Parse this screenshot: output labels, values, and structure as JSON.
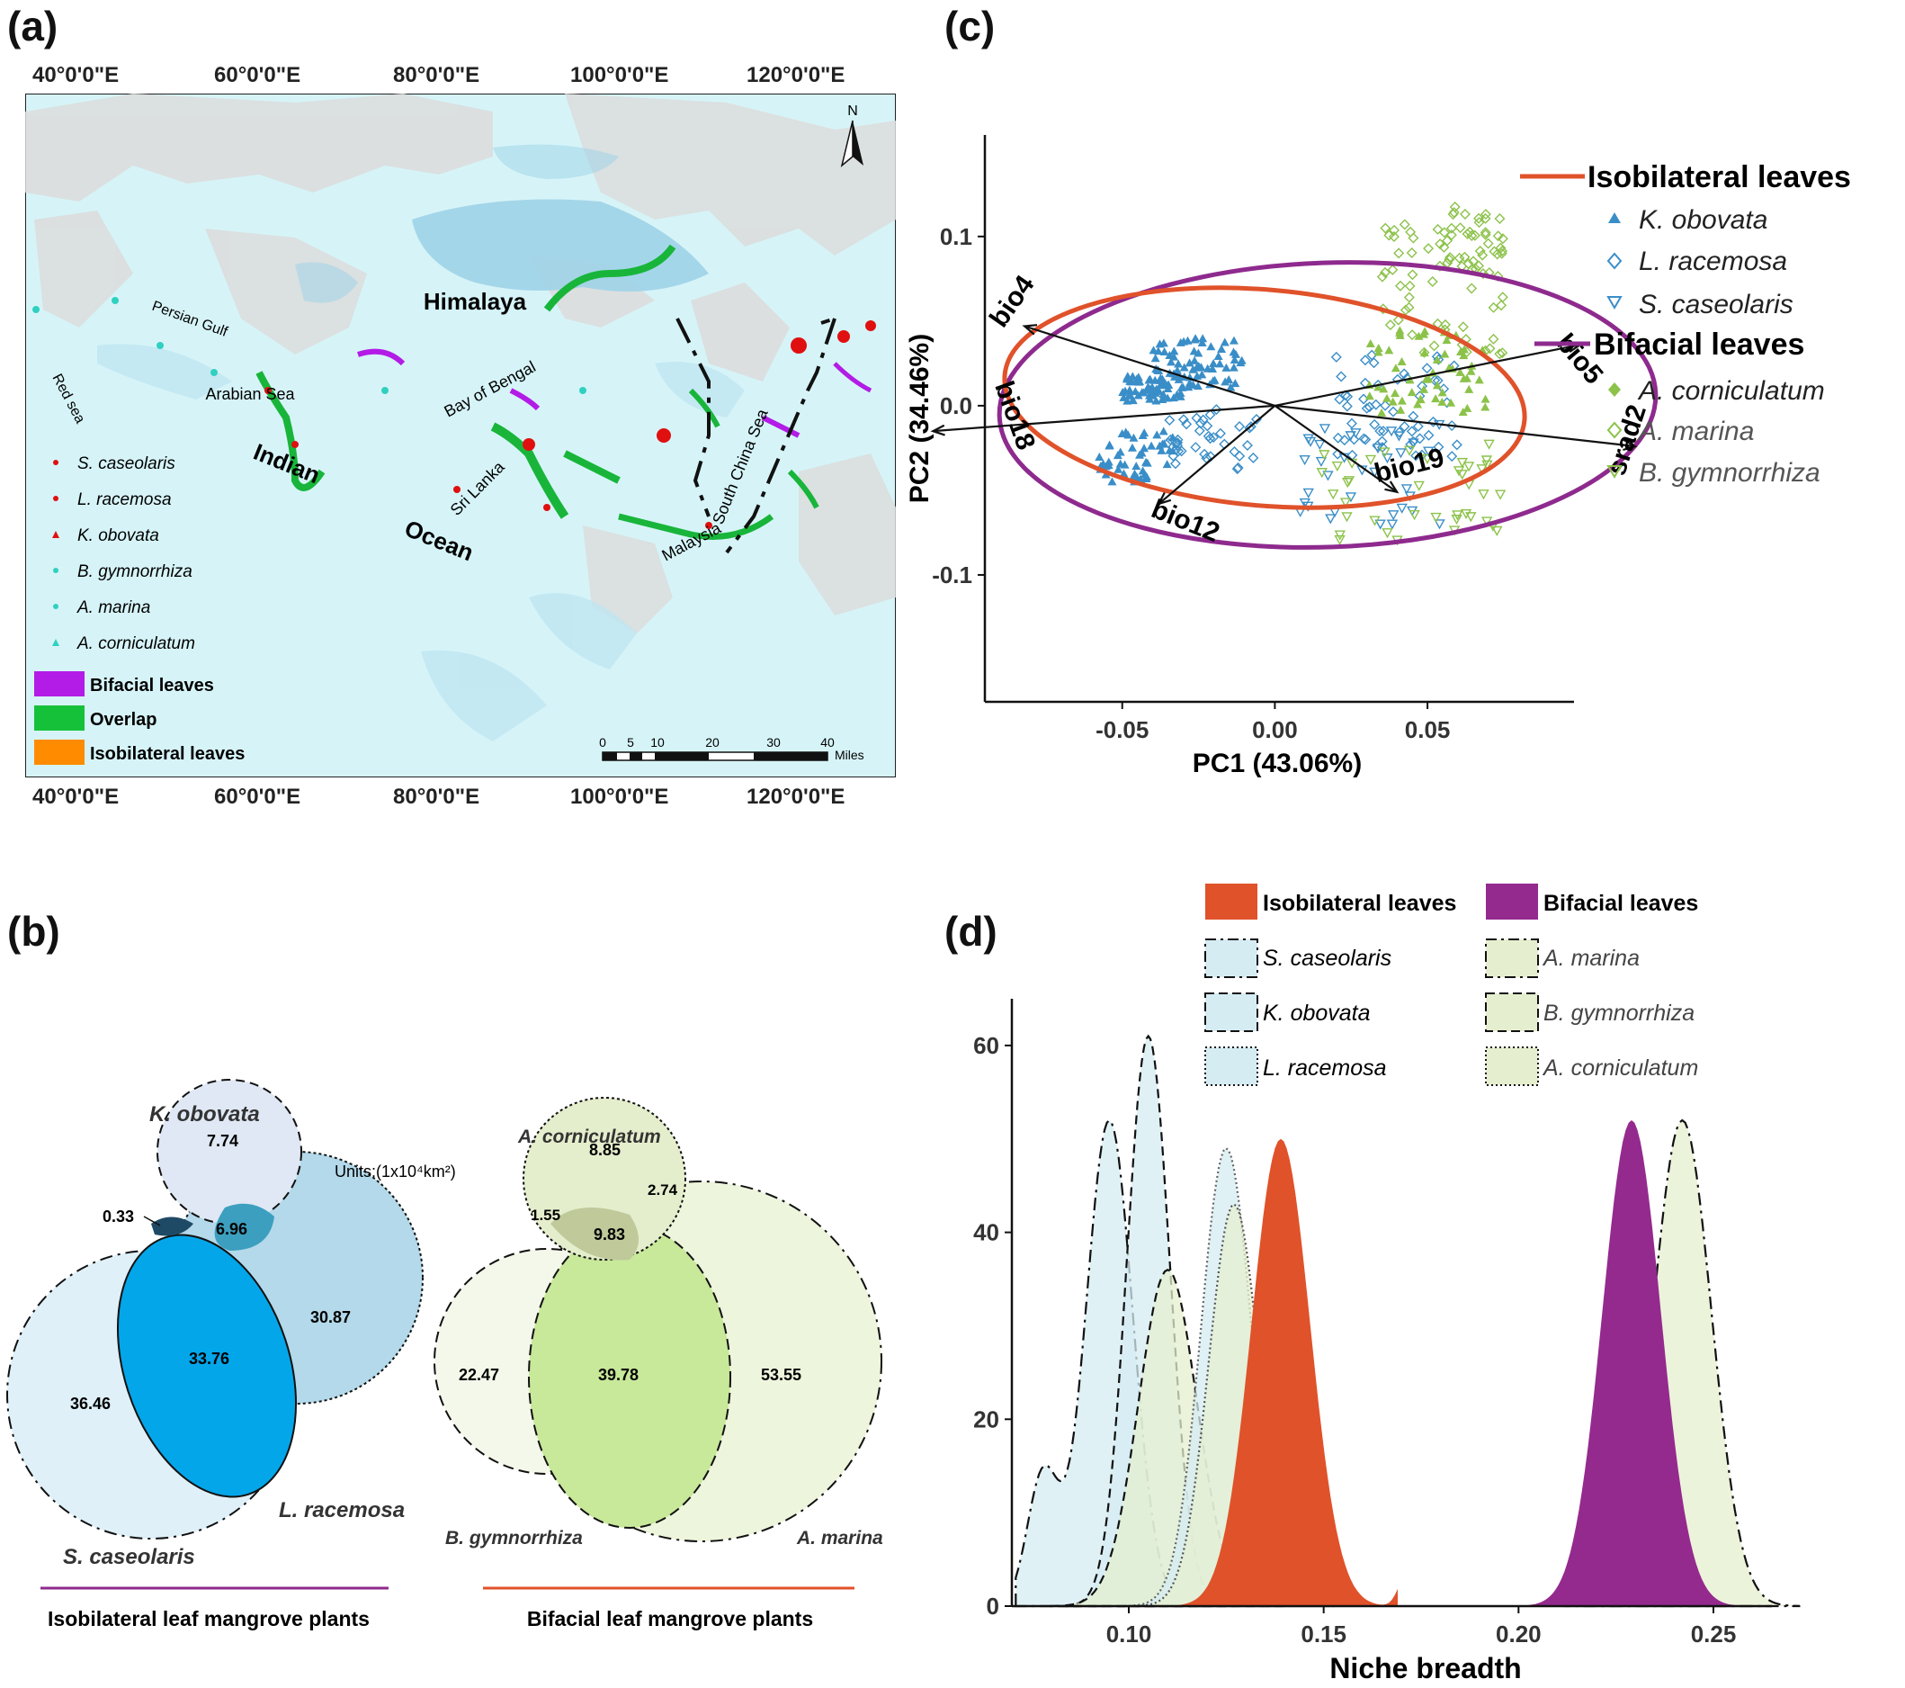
{
  "panels": {
    "a": {
      "label": "(a)",
      "lon_ticks": [
        "40°0'0\"E",
        "60°0'0\"E",
        "80°0'0\"E",
        "100°0'0\"E",
        "120°0'0\"E"
      ],
      "north": "N",
      "places": {
        "himalaya": "Himalaya",
        "persian_gulf": "Persian Gulf",
        "red_sea": "Red sea",
        "arabian_sea": "Arabian Sea",
        "bay_of_bengal": "Bay of Bengal",
        "indian": "Indian",
        "ocean": "Ocean",
        "sri_lanka": "Sri Lanka",
        "south_china_sea": "South China Sea",
        "malaysia": "Malaysia"
      },
      "species": [
        "S. caseolaris",
        "L. racemosa",
        "K. obovata",
        "B. gymnorrhiza",
        "A. marina",
        "A. corniculatum"
      ],
      "legend_boxes": [
        "Bifacial leaves",
        "Overlap",
        "Isobilateral leaves"
      ],
      "scale_ticks": [
        "0",
        "5",
        "10",
        "20",
        "30",
        "40"
      ],
      "scale_unit": "Miles",
      "colors": {
        "bifacial": "#b31be6",
        "overlap": "#16c13a",
        "isobilateral": "#ff8c00"
      }
    },
    "b": {
      "label": "(b)",
      "units": "Units:(1x10⁴km²)",
      "iso": {
        "k_obovata": "K. obovata",
        "l_racemosa": "L. racemosa",
        "s_caseolaris": "S. caseolaris",
        "v_k_only": "7.74",
        "v_k_l": "6.96",
        "v_k_s": "0.33",
        "v_l_only": "30.87",
        "v_s_l": "33.76",
        "v_s_only": "36.46",
        "caption": "Isobilateral leaf mangrove plants"
      },
      "bif": {
        "a_corniculatum": "A. corniculatum",
        "b_gymnorrhiza": "B. gymnorrhiza",
        "a_marina": "A. marina",
        "v_ac_only": "8.85",
        "v_ac_am": "2.74",
        "v_ac_bg": "1.55",
        "v_all": "9.83",
        "v_bg_only": "22.47",
        "v_bg_am": "39.78",
        "v_am_only": "53.55",
        "caption": "Bifacial leaf mangrove plants"
      }
    },
    "c": {
      "label": "(c)",
      "xlabel": "PC1 (43.06%)",
      "ylabel": "PC2 (34.46%)",
      "x_ticks": [
        "-0.05",
        "0.00",
        "0.05"
      ],
      "y_ticks": [
        "0.1",
        "0.0",
        "-0.1"
      ],
      "arrows": [
        "bio4",
        "bio5",
        "bio18",
        "srad2",
        "bio12",
        "bio19"
      ],
      "legend_iso": "Isobilateral leaves",
      "legend_bif": "Bifacial leaves",
      "iso_species": [
        "K. obovata",
        "L. racemosa",
        "S. caseolaris"
      ],
      "bif_species": [
        "A. corniculatum",
        "A. marina",
        "B. gymnorrhiza"
      ],
      "colors": {
        "iso": "#e0522a",
        "bif": "#8e2a8e",
        "blue": "#3a8ec8",
        "green": "#8cc24a"
      }
    },
    "d": {
      "label": "(d)",
      "xlabel": "Niche breadth",
      "x_ticks": [
        "0.10",
        "0.15",
        "0.20",
        "0.25"
      ],
      "y_ticks": [
        "0",
        "20",
        "40",
        "60"
      ],
      "legend_iso": "Isobilateral leaves",
      "legend_bif": "Bifacial leaves",
      "iso_species": [
        "S. caseolaris",
        "K. obovata",
        "L. racemosa"
      ],
      "bif_species": [
        "A. marina",
        "B. gymnorrhiza",
        "A. corniculatum"
      ],
      "colors": {
        "iso": "#e0522a",
        "bif": "#942a8e",
        "light_blue": "#d6ecf3",
        "light_green": "#e5efcf"
      }
    }
  },
  "chart_data": [
    {
      "type": "scatter",
      "xlabel": "PC1 (43.06%)",
      "ylabel": "PC2 (34.46%)",
      "xlim": [
        -0.095,
        0.098
      ],
      "ylim": [
        -0.175,
        0.16
      ],
      "arrows": [
        {
          "name": "bio4",
          "x": -0.082,
          "y": 0.047
        },
        {
          "name": "bio5",
          "x": 0.1,
          "y": 0.036
        },
        {
          "name": "bio18",
          "x": -0.112,
          "y": -0.015
        },
        {
          "name": "srad2",
          "x": 0.118,
          "y": -0.024
        },
        {
          "name": "bio12",
          "x": -0.038,
          "y": -0.058
        },
        {
          "name": "bio19",
          "x": 0.04,
          "y": -0.051
        }
      ],
      "series": [
        {
          "name": "Isobilateral leaves",
          "centroid": [
            -0.01,
            0.0
          ]
        },
        {
          "name": "Bifacial leaves",
          "centroid": [
            0.03,
            0.005
          ]
        }
      ]
    },
    {
      "type": "area",
      "xlabel": "Niche breadth",
      "xlim": [
        0.07,
        0.265
      ],
      "ylim": [
        0,
        65
      ],
      "series": [
        {
          "name": "S. caseolaris",
          "peak_x": 0.095,
          "peak_y": 52
        },
        {
          "name": "K. obovata",
          "peak_x": 0.105,
          "peak_y": 61
        },
        {
          "name": "L. racemosa",
          "peak_x": 0.125,
          "peak_y": 49
        },
        {
          "name": "Isobilateral leaves",
          "peak_x": 0.139,
          "peak_y": 50
        },
        {
          "name": "A. corniculatum",
          "peak_x": 0.11,
          "peak_y": 36
        },
        {
          "name": "B. gymnorrhiza",
          "peak_x": 0.127,
          "peak_y": 43
        },
        {
          "name": "Bifacial leaves",
          "peak_x": 0.229,
          "peak_y": 52
        },
        {
          "name": "A. marina",
          "peak_x": 0.242,
          "peak_y": 52
        }
      ]
    }
  ]
}
